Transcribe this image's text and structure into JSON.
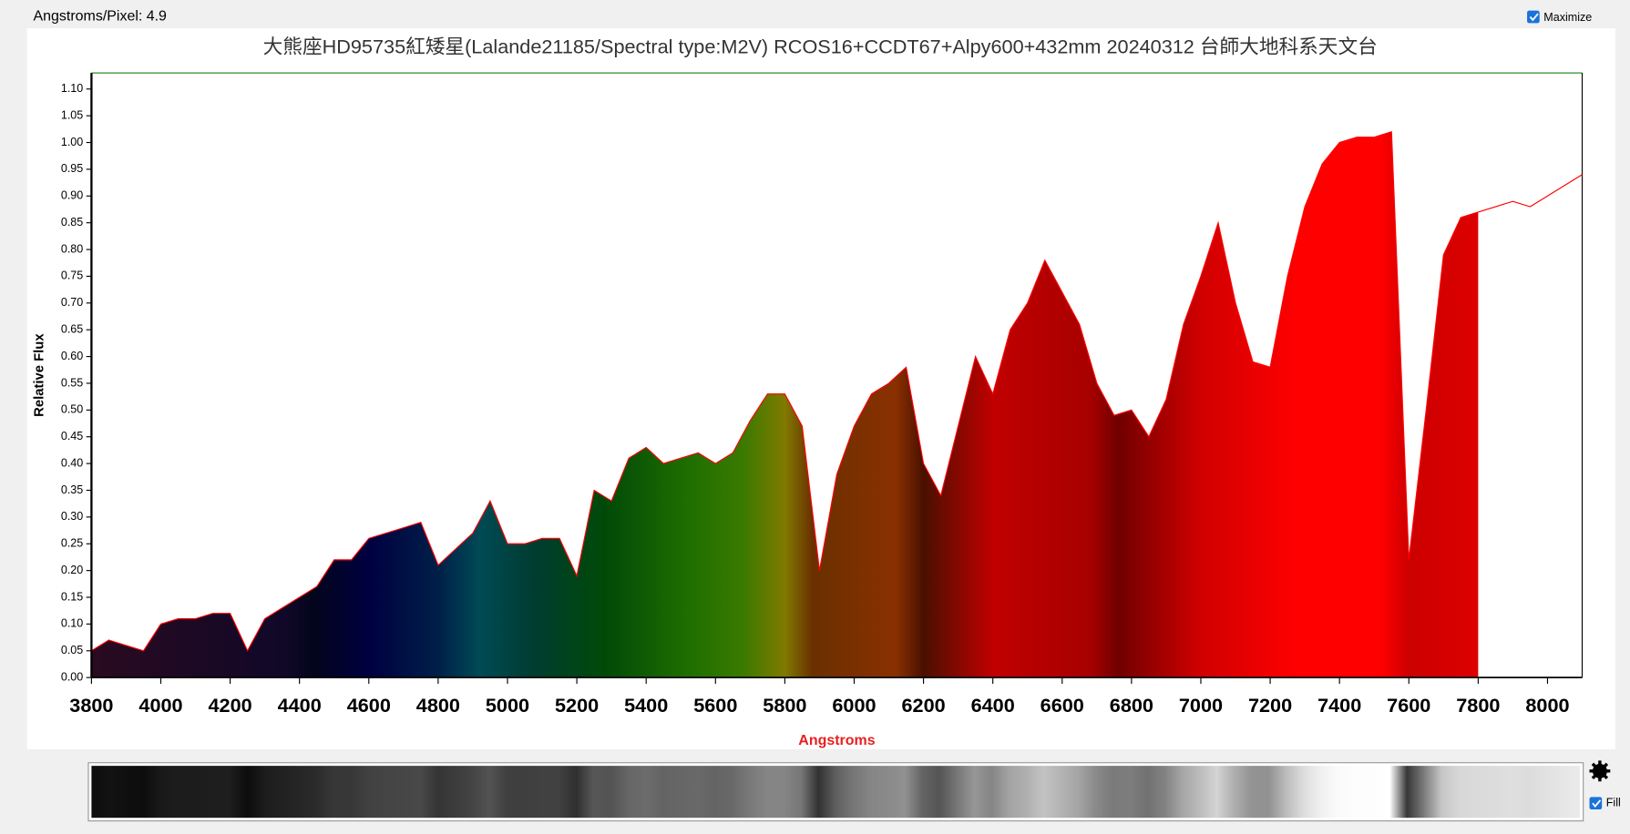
{
  "ui": {
    "scale_text": "Angstroms/Pixel: 4.9",
    "maximize": "Maximize",
    "fill": "Fill"
  },
  "chart_data": {
    "type": "area",
    "title": "大熊座HD95735紅矮星(Lalande21185/Spectral type:M2V)  RCOS16+CCDT67+Alpy600+432mm   20240312  台師大地科系天文台",
    "x_label": "Angstroms",
    "y_label": "Relative Flux",
    "color": "#ff0000",
    "fill": true,
    "fill_end": 7800,
    "x": [
      3800,
      3850,
      3900,
      3950,
      4000,
      4050,
      4100,
      4150,
      4200,
      4250,
      4300,
      4350,
      4400,
      4450,
      4500,
      4550,
      4600,
      4650,
      4700,
      4750,
      4800,
      4850,
      4900,
      4950,
      5000,
      5050,
      5100,
      5150,
      5200,
      5250,
      5300,
      5350,
      5400,
      5450,
      5500,
      5550,
      5600,
      5650,
      5700,
      5750,
      5800,
      5850,
      5900,
      5950,
      6000,
      6050,
      6100,
      6150,
      6200,
      6250,
      6300,
      6350,
      6400,
      6450,
      6500,
      6550,
      6600,
      6650,
      6700,
      6750,
      6800,
      6850,
      6900,
      6950,
      7000,
      7050,
      7100,
      7150,
      7200,
      7250,
      7300,
      7350,
      7400,
      7450,
      7500,
      7550,
      7600,
      7650,
      7700,
      7750,
      7800,
      7850,
      7900,
      7950,
      8000,
      8050,
      8100
    ],
    "values": [
      0.05,
      0.07,
      0.06,
      0.05,
      0.1,
      0.11,
      0.11,
      0.12,
      0.12,
      0.05,
      0.11,
      0.13,
      0.15,
      0.17,
      0.22,
      0.22,
      0.26,
      0.27,
      0.28,
      0.29,
      0.21,
      0.24,
      0.27,
      0.33,
      0.25,
      0.25,
      0.26,
      0.26,
      0.19,
      0.35,
      0.33,
      0.41,
      0.43,
      0.4,
      0.41,
      0.42,
      0.4,
      0.42,
      0.48,
      0.53,
      0.53,
      0.47,
      0.2,
      0.38,
      0.47,
      0.53,
      0.55,
      0.58,
      0.4,
      0.34,
      0.47,
      0.6,
      0.53,
      0.65,
      0.7,
      0.78,
      0.72,
      0.66,
      0.55,
      0.49,
      0.5,
      0.45,
      0.52,
      0.66,
      0.75,
      0.85,
      0.7,
      0.59,
      0.58,
      0.75,
      0.88,
      0.96,
      1.0,
      1.01,
      1.01,
      1.02,
      0.22,
      0.5,
      0.79,
      0.86,
      0.87,
      0.88,
      0.89,
      0.88,
      0.9,
      0.92,
      0.94
    ],
    "xlim": [
      3800,
      8100
    ],
    "xticks": [
      3800,
      4000,
      4200,
      4400,
      4600,
      4800,
      5000,
      5200,
      5400,
      5600,
      5800,
      6000,
      6200,
      6400,
      6600,
      6800,
      7000,
      7200,
      7400,
      7600,
      7800,
      8000
    ],
    "ylim": [
      0,
      1.13
    ],
    "yticks": [
      {
        "value": 0,
        "label": "0.00"
      },
      {
        "value": 0.05,
        "label": "0.05"
      },
      {
        "value": 0.1,
        "label": "0.10"
      },
      {
        "value": 0.15,
        "label": "0.15"
      },
      {
        "value": 0.2,
        "label": "0.20"
      },
      {
        "value": 0.25,
        "label": "0.25"
      },
      {
        "value": 0.3,
        "label": "0.30"
      },
      {
        "value": 0.35,
        "label": "0.35"
      },
      {
        "value": 0.4,
        "label": "0.40"
      },
      {
        "value": 0.45,
        "label": "0.45"
      },
      {
        "value": 0.5,
        "label": "0.50"
      },
      {
        "value": 0.55,
        "label": "0.55"
      },
      {
        "value": 0.6,
        "label": "0.60"
      },
      {
        "value": 0.65,
        "label": "0.65"
      },
      {
        "value": 0.7,
        "label": "0.70"
      },
      {
        "value": 0.75,
        "label": "0.75"
      },
      {
        "value": 0.8,
        "label": "0.80"
      },
      {
        "value": 0.85,
        "label": "0.85"
      },
      {
        "value": 0.9,
        "label": "0.90"
      },
      {
        "value": 0.95,
        "label": "0.95"
      },
      {
        "value": 1.0,
        "label": "1.00"
      },
      {
        "value": 1.05,
        "label": "1.05"
      },
      {
        "value": 1.1,
        "label": "1.10"
      }
    ]
  }
}
